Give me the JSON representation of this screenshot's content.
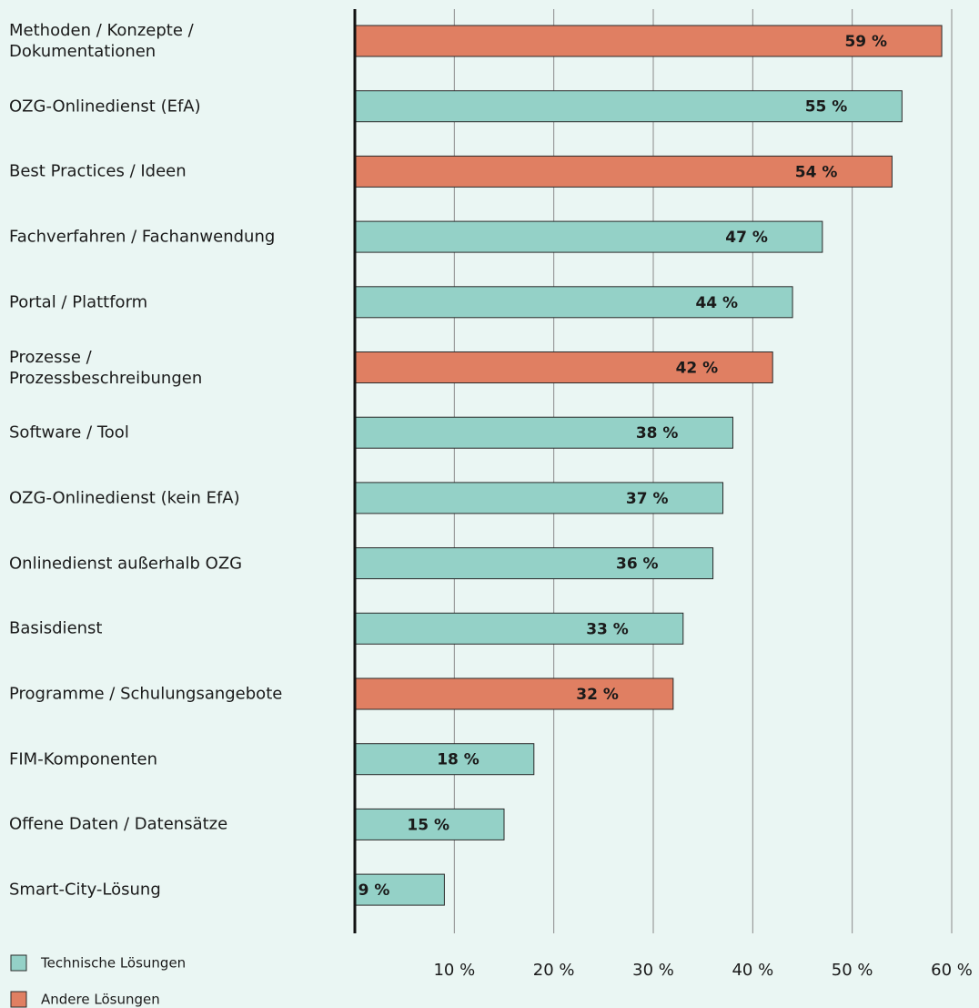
{
  "chart_data": {
    "type": "barh",
    "categories": [
      "Methoden / Konzepte /\nDokumentationen",
      "OZG-Onlinedienst (EfA)",
      "Best Practices / Ideen",
      "Fachverfahren / Fachanwendung",
      "Portal / Plattform",
      "Prozesse /\nProzessbeschreibungen",
      "Software / Tool",
      "OZG-Onlinedienst (kein EfA)",
      "Onlinedienst außerhalb OZG",
      "Basisdienst",
      "Programme / Schulungsangebote",
      "FIM-Komponenten",
      "Offene Daten / Datensätze",
      "Smart-City-Lösung"
    ],
    "series": [
      {
        "name": "Technische Lösungen",
        "color": "#94d1c7",
        "values": [
          null,
          55,
          null,
          47,
          44,
          null,
          38,
          37,
          36,
          33,
          null,
          18,
          15,
          9
        ],
        "value_labels": [
          null,
          "55 %",
          null,
          "47 %",
          "44 %",
          null,
          "38 %",
          "37 %",
          "36 %",
          "33 %",
          null,
          "18 %",
          "15 %",
          "9 %"
        ]
      },
      {
        "name": "Andere Lösungen",
        "color": "#e07f62",
        "values": [
          59,
          null,
          54,
          null,
          null,
          42,
          null,
          null,
          null,
          null,
          32,
          null,
          null,
          null
        ],
        "value_labels": [
          "59 %",
          null,
          "54 %",
          null,
          null,
          "42 %",
          null,
          null,
          null,
          null,
          "32 %",
          null,
          null,
          null
        ]
      }
    ],
    "xlim": [
      0,
      60
    ],
    "xticks": [
      {
        "value": 10,
        "label": "10 %"
      },
      {
        "value": 20,
        "label": "20 %"
      },
      {
        "value": 30,
        "label": "30 %"
      },
      {
        "value": 40,
        "label": "40 %"
      },
      {
        "value": 50,
        "label": "50 %"
      },
      {
        "value": 60,
        "label": "60 %"
      }
    ],
    "grid": true
  }
}
